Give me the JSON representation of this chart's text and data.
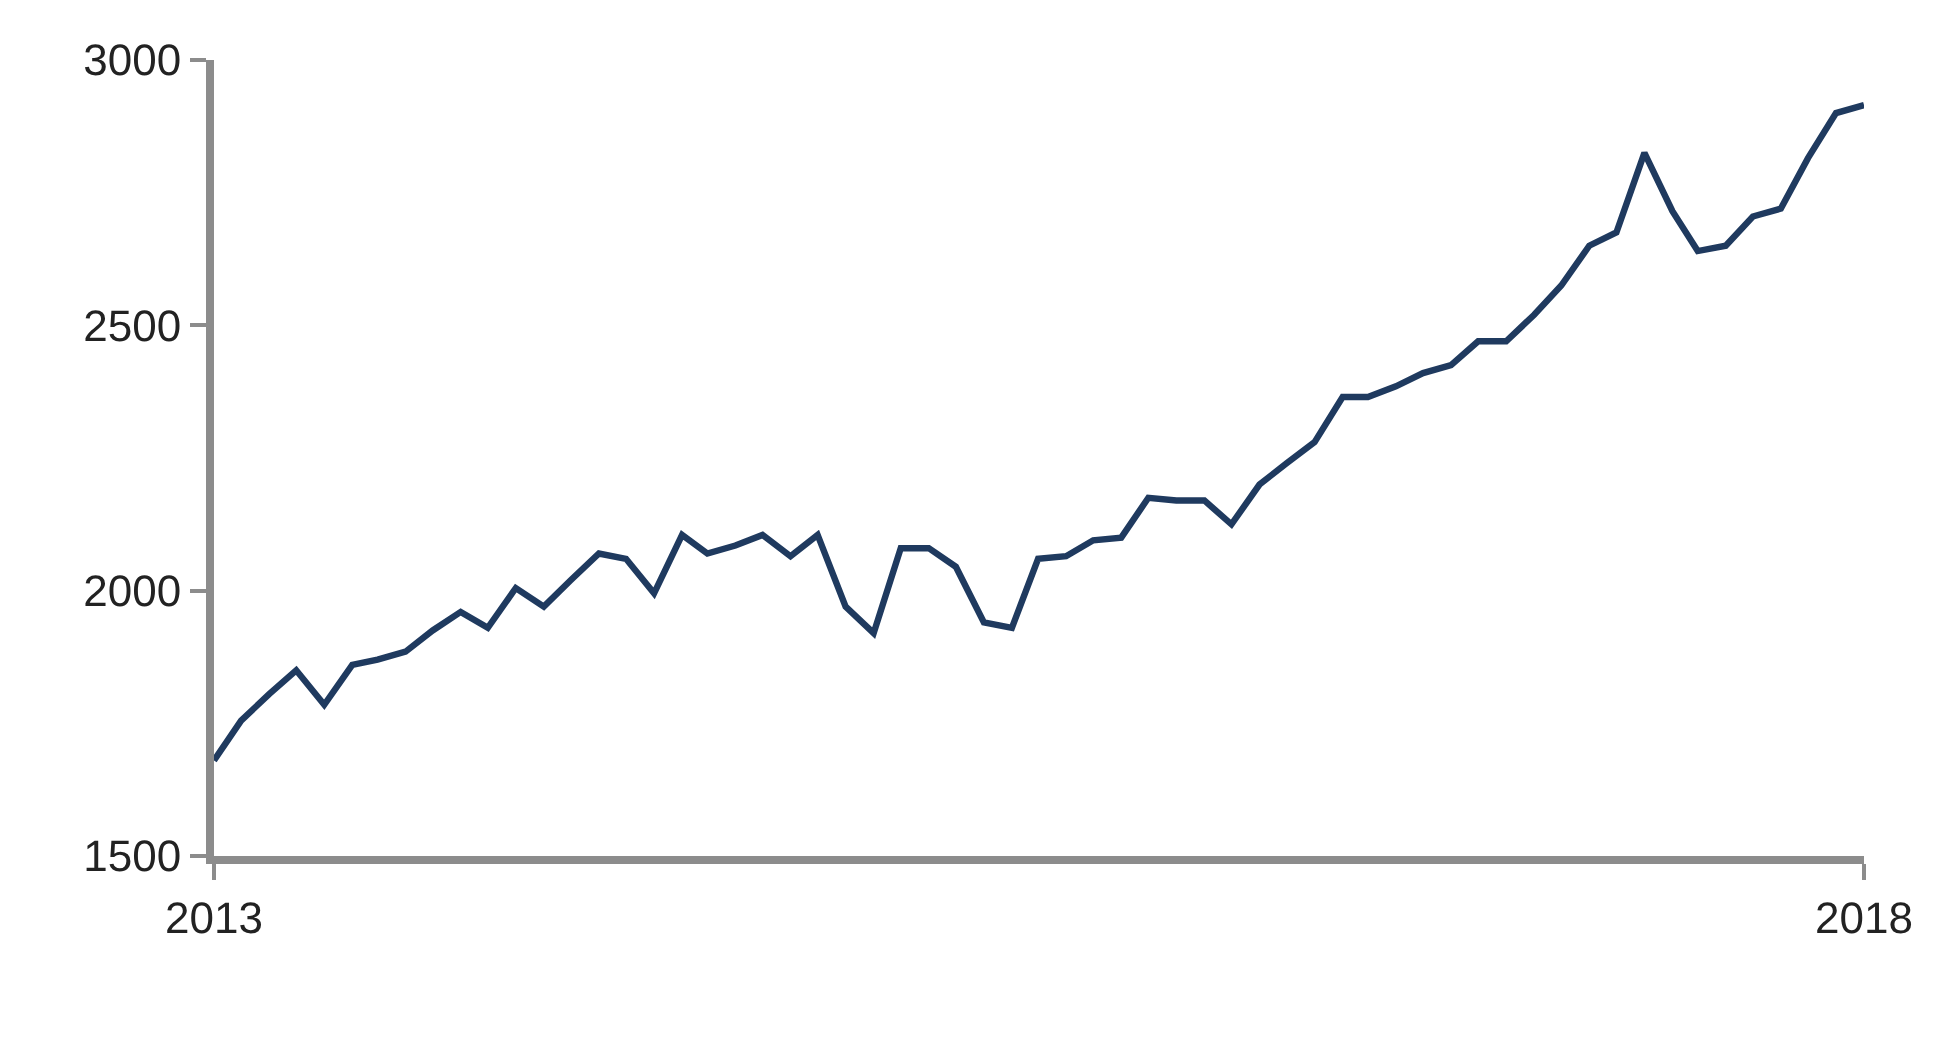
{
  "chart_data": {
    "type": "line",
    "x": [
      "2013-09",
      "2013-10",
      "2013-11",
      "2013-12",
      "2014-01",
      "2014-02",
      "2014-03",
      "2014-04",
      "2014-05",
      "2014-06",
      "2014-07",
      "2014-08",
      "2014-09",
      "2014-10",
      "2014-11",
      "2014-12",
      "2015-01",
      "2015-02",
      "2015-03",
      "2015-04",
      "2015-05",
      "2015-06",
      "2015-07",
      "2015-08",
      "2015-09",
      "2015-10",
      "2015-11",
      "2015-12",
      "2016-01",
      "2016-02",
      "2016-03",
      "2016-04",
      "2016-05",
      "2016-06",
      "2016-07",
      "2016-08",
      "2016-09",
      "2016-10",
      "2016-11",
      "2016-12",
      "2017-01",
      "2017-02",
      "2017-03",
      "2017-04",
      "2017-05",
      "2017-06",
      "2017-07",
      "2017-08",
      "2017-09",
      "2017-10",
      "2017-11",
      "2017-12",
      "2018-01",
      "2018-02",
      "2018-03",
      "2018-04",
      "2018-05",
      "2018-06",
      "2018-07",
      "2018-08",
      "2018-09"
    ],
    "series": [
      {
        "color": "#1f3a5f",
        "values": [
          1680,
          1755,
          1805,
          1850,
          1785,
          1860,
          1870,
          1885,
          1925,
          1960,
          1930,
          2005,
          1970,
          2020,
          2070,
          2060,
          1995,
          2105,
          2070,
          2085,
          2105,
          2065,
          2105,
          1970,
          1920,
          2080,
          2080,
          2045,
          1940,
          1930,
          2060,
          2065,
          2095,
          2100,
          2175,
          2170,
          2170,
          2125,
          2200,
          2240,
          2280,
          2365,
          2365,
          2385,
          2410,
          2425,
          2470,
          2470,
          2520,
          2575,
          2650,
          2675,
          2825,
          2715,
          2640,
          2650,
          2705,
          2720,
          2815,
          2900,
          2915
        ]
      }
    ],
    "xlim": [
      "2013-09",
      "2018-09"
    ],
    "xticks": [
      {
        "value": "2013-09",
        "label": "2013"
      },
      {
        "value": "2018-09",
        "label": "2018"
      }
    ],
    "ylim": [
      1500,
      3000
    ],
    "yticks": [
      1500,
      2000,
      2500,
      3000
    ],
    "marker": "none",
    "line_style": "solid"
  }
}
